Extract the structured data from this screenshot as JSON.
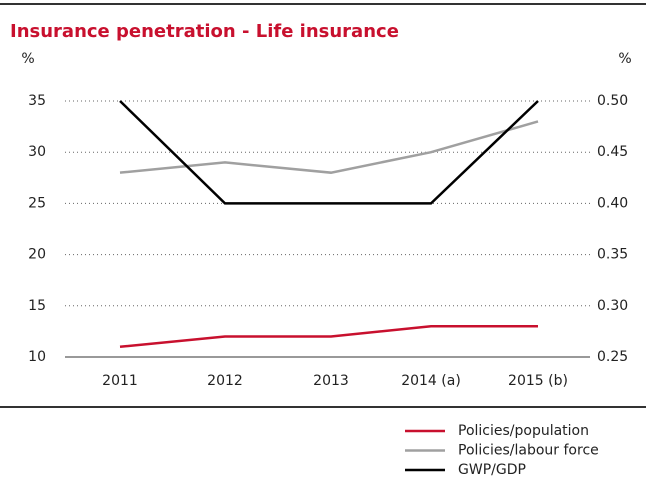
{
  "chart_data": {
    "type": "line",
    "title": "Insurance penetration - Life insurance",
    "y_label": "%",
    "y2_label": "%",
    "categories": [
      "2011",
      "2012",
      "2013",
      "2014 (a)",
      "2015 (b)"
    ],
    "series": [
      {
        "name": "Policies/population",
        "color": "#c8102e",
        "values": [
          11,
          12,
          12,
          13,
          13
        ]
      },
      {
        "name": "Policies/labour force",
        "color": "#a0a0a0",
        "values": [
          28,
          29,
          28,
          30,
          33
        ]
      },
      {
        "name": "GWP/GDP",
        "color": "#000000",
        "axis": "y2",
        "values": [
          0.5,
          0.4,
          0.4,
          0.4,
          0.5
        ]
      }
    ],
    "ylim": [
      10,
      35
    ],
    "yticks": [
      10,
      15,
      20,
      25,
      30,
      35
    ],
    "y2lim": [
      0.25,
      0.5
    ],
    "y2ticks": [
      0.25,
      {
        "value": 0.3,
        "label": "0.30"
      },
      0.35,
      {
        "value": 0.4,
        "label": "0.40"
      },
      0.45,
      {
        "value": 0.5,
        "label": "0.50"
      }
    ],
    "grid": true,
    "legend": "bottom-right"
  }
}
